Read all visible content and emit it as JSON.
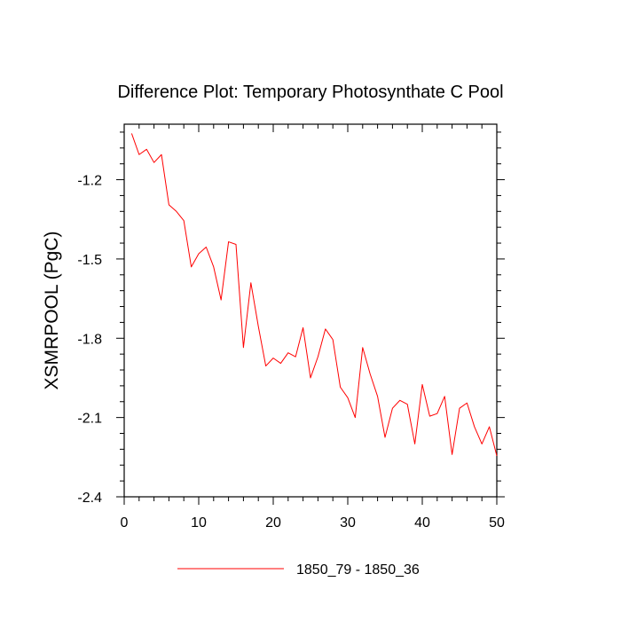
{
  "chart_data": {
    "type": "line",
    "title": "Difference Plot: Temporary Photosynthate C Pool",
    "xlabel": "",
    "ylabel": "XSMRPOOL  (PgC)",
    "xlim": [
      0,
      50
    ],
    "ylim": [
      -2.4,
      -0.99
    ],
    "x_ticks": [
      0,
      10,
      20,
      30,
      40,
      50
    ],
    "x_tick_labels": [
      "0",
      "10",
      "20",
      "30",
      "40",
      "50"
    ],
    "y_ticks": [
      -2.4,
      -2.1,
      -1.8,
      -1.5,
      -1.2
    ],
    "y_tick_labels": [
      "-2.4",
      "-2.1",
      "-1.8",
      "-1.5",
      "-1.2"
    ],
    "grid": false,
    "legend_position": "bottom-center",
    "series": [
      {
        "name": "1850_79 - 1850_36",
        "color": "#ff0000",
        "x": [
          1,
          2,
          3,
          4,
          5,
          6,
          7,
          8,
          9,
          10,
          11,
          12,
          13,
          14,
          15,
          16,
          17,
          18,
          19,
          20,
          21,
          22,
          23,
          24,
          25,
          26,
          27,
          28,
          29,
          30,
          31,
          32,
          33,
          34,
          35,
          36,
          37,
          38,
          39,
          40,
          41,
          42,
          43,
          44,
          45,
          46,
          47,
          48,
          49,
          50
        ],
        "values": [
          -1.025,
          -1.105,
          -1.085,
          -1.135,
          -1.105,
          -1.295,
          -1.32,
          -1.355,
          -1.53,
          -1.48,
          -1.455,
          -1.53,
          -1.655,
          -1.435,
          -1.445,
          -1.835,
          -1.59,
          -1.755,
          -1.905,
          -1.875,
          -1.895,
          -1.855,
          -1.87,
          -1.76,
          -1.95,
          -1.87,
          -1.765,
          -1.805,
          -1.985,
          -2.025,
          -2.1,
          -1.835,
          -1.935,
          -2.02,
          -2.175,
          -2.065,
          -2.035,
          -2.05,
          -2.2,
          -1.975,
          -2.095,
          -2.085,
          -2.02,
          -2.24,
          -2.065,
          -2.045,
          -2.135,
          -2.2,
          -2.135,
          -2.245
        ]
      }
    ]
  }
}
